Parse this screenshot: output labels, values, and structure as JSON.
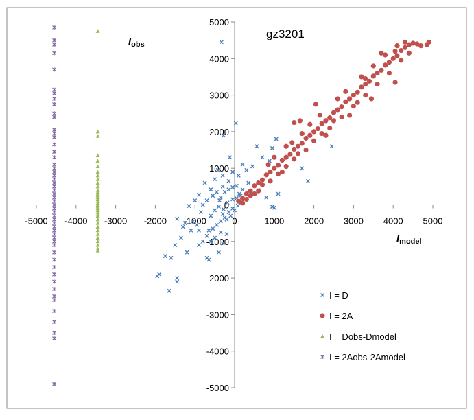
{
  "chart_data": {
    "type": "scatter",
    "title": "gz3201",
    "xlabel": "I",
    "xlabel_sub": "model",
    "ylabel": "I",
    "ylabel_sub": "obs",
    "xlim": [
      -5000,
      5000
    ],
    "ylim": [
      -5000,
      5000
    ],
    "x_ticks": [
      -5000,
      -4000,
      -3000,
      -2000,
      -1000,
      0,
      1000,
      2000,
      3000,
      4000,
      5000
    ],
    "y_ticks": [
      -5000,
      -4000,
      -3000,
      -2000,
      -1000,
      0,
      1000,
      2000,
      3000,
      4000,
      5000
    ],
    "grid": false,
    "legend_position": "bottom-right",
    "series": [
      {
        "name": "I = D",
        "marker": "x",
        "color": "#4a7ebb",
        "points": [
          [
            -330,
            4450
          ],
          [
            -280,
            1900
          ],
          [
            30,
            2230
          ],
          [
            -120,
            1300
          ],
          [
            200,
            1100
          ],
          [
            560,
            1600
          ],
          [
            2450,
            1600
          ],
          [
            -420,
            950
          ],
          [
            -300,
            800
          ],
          [
            -500,
            700
          ],
          [
            -750,
            600
          ],
          [
            -600,
            420
          ],
          [
            -900,
            280
          ],
          [
            -1000,
            120
          ],
          [
            -1150,
            -30
          ],
          [
            -1450,
            -380
          ],
          [
            -1300,
            -600
          ],
          [
            -1100,
            -700
          ],
          [
            -1350,
            -900
          ],
          [
            -1500,
            -1100
          ],
          [
            -1750,
            -1400
          ],
          [
            -1600,
            -1450
          ],
          [
            -1200,
            -1300
          ],
          [
            -900,
            -1100
          ],
          [
            -650,
            -1500
          ],
          [
            -700,
            -1450
          ],
          [
            -400,
            -1300
          ],
          [
            -300,
            -1050
          ],
          [
            -200,
            -800
          ],
          [
            -900,
            -700
          ],
          [
            -700,
            -850
          ],
          [
            -500,
            -900
          ],
          [
            -1900,
            -1900
          ],
          [
            -1950,
            -1950
          ],
          [
            -1450,
            -2000
          ],
          [
            -1450,
            -2100
          ],
          [
            -1650,
            -2350
          ],
          [
            -300,
            500
          ],
          [
            -150,
            650
          ],
          [
            -50,
            900
          ],
          [
            100,
            800
          ],
          [
            300,
            950
          ],
          [
            450,
            1050
          ],
          [
            700,
            1300
          ],
          [
            950,
            1550
          ],
          [
            1050,
            1800
          ],
          [
            880,
            1200
          ],
          [
            1850,
            650
          ],
          [
            1700,
            1000
          ],
          [
            1100,
            300
          ],
          [
            950,
            -50
          ],
          [
            1000,
            -80
          ],
          [
            800,
            200
          ],
          [
            600,
            400
          ],
          [
            400,
            300
          ],
          [
            250,
            150
          ],
          [
            150,
            50
          ],
          [
            80,
            -20
          ],
          [
            -50,
            -100
          ],
          [
            -150,
            -200
          ],
          [
            -250,
            -350
          ],
          [
            -350,
            -450
          ],
          [
            -450,
            -550
          ],
          [
            -550,
            -650
          ],
          [
            -650,
            -700
          ],
          [
            -850,
            -200
          ],
          [
            -800,
            0
          ],
          [
            -700,
            120
          ],
          [
            -550,
            250
          ],
          [
            -450,
            350
          ],
          [
            -350,
            200
          ],
          [
            -250,
            350
          ],
          [
            -150,
            420
          ],
          [
            -50,
            480
          ],
          [
            50,
            520
          ],
          [
            120,
            300
          ],
          [
            200,
            420
          ],
          [
            350,
            600
          ],
          [
            -600,
            -300
          ],
          [
            -500,
            -150
          ],
          [
            -400,
            -50
          ],
          [
            -300,
            -250
          ],
          [
            -200,
            -400
          ],
          [
            -100,
            -300
          ],
          [
            0,
            -150
          ],
          [
            -50,
            150
          ],
          [
            50,
            180
          ],
          [
            150,
            250
          ],
          [
            -380,
            120
          ],
          [
            -280,
            -120
          ],
          [
            -180,
            60
          ],
          [
            -1050,
            -450
          ],
          [
            -950,
            -550
          ],
          [
            -1250,
            -500
          ],
          [
            -800,
            -1000
          ],
          [
            -600,
            -1000
          ],
          [
            -350,
            -750
          ]
        ]
      },
      {
        "name": "I = 2A",
        "marker": "circle",
        "color": "#c0504d",
        "points": [
          [
            100,
            100
          ],
          [
            200,
            180
          ],
          [
            300,
            300
          ],
          [
            400,
            380
          ],
          [
            500,
            520
          ],
          [
            600,
            600
          ],
          [
            700,
            680
          ],
          [
            800,
            820
          ],
          [
            900,
            900
          ],
          [
            1000,
            1000
          ],
          [
            1100,
            1080
          ],
          [
            1200,
            1220
          ],
          [
            1300,
            1300
          ],
          [
            1400,
            1380
          ],
          [
            1500,
            1520
          ],
          [
            1600,
            1600
          ],
          [
            1700,
            1680
          ],
          [
            1800,
            1820
          ],
          [
            1900,
            1900
          ],
          [
            2000,
            2000
          ],
          [
            2100,
            2080
          ],
          [
            2200,
            2220
          ],
          [
            2300,
            2300
          ],
          [
            2400,
            2380
          ],
          [
            2500,
            2520
          ],
          [
            2600,
            2600
          ],
          [
            2700,
            2680
          ],
          [
            2800,
            2820
          ],
          [
            2900,
            2900
          ],
          [
            3000,
            3000
          ],
          [
            3100,
            3080
          ],
          [
            3200,
            3220
          ],
          [
            3300,
            3300
          ],
          [
            3400,
            3380
          ],
          [
            3500,
            3520
          ],
          [
            3600,
            3600
          ],
          [
            3700,
            3680
          ],
          [
            3800,
            3820
          ],
          [
            3900,
            3900
          ],
          [
            4000,
            4000
          ],
          [
            4100,
            4080
          ],
          [
            4200,
            4220
          ],
          [
            4300,
            4300
          ],
          [
            4400,
            4380
          ],
          [
            4500,
            4420
          ],
          [
            4600,
            4400
          ],
          [
            4700,
            4350
          ],
          [
            4900,
            4450
          ],
          [
            4850,
            4380
          ],
          [
            1500,
            2250
          ],
          [
            1650,
            2300
          ],
          [
            2050,
            2750
          ],
          [
            3300,
            3450
          ],
          [
            3700,
            4150
          ],
          [
            4050,
            4200
          ],
          [
            1800,
            1500
          ],
          [
            2300,
            1900
          ],
          [
            2900,
            2450
          ],
          [
            3450,
            2900
          ],
          [
            4050,
            3350
          ],
          [
            900,
            650
          ],
          [
            600,
            380
          ],
          [
            1200,
            900
          ],
          [
            1000,
            1300
          ],
          [
            1700,
            1950
          ],
          [
            2500,
            2300
          ],
          [
            3100,
            2800
          ],
          [
            500,
            300
          ],
          [
            300,
            150
          ],
          [
            200,
            50
          ],
          [
            400,
            250
          ],
          [
            700,
            550
          ],
          [
            1100,
            850
          ],
          [
            1300,
            1050
          ],
          [
            1500,
            1250
          ],
          [
            1600,
            1400
          ],
          [
            2000,
            1750
          ],
          [
            2200,
            1950
          ],
          [
            2400,
            2100
          ],
          [
            2700,
            2400
          ],
          [
            3000,
            2700
          ],
          [
            3300,
            3000
          ],
          [
            3600,
            3300
          ],
          [
            3900,
            3600
          ],
          [
            4200,
            3950
          ],
          [
            4400,
            4150
          ],
          [
            1300,
            1600
          ],
          [
            1900,
            2200
          ],
          [
            2600,
            2900
          ],
          [
            3200,
            3500
          ],
          [
            3800,
            4100
          ],
          [
            4300,
            4450
          ],
          [
            850,
            1100
          ],
          [
            1450,
            1700
          ],
          [
            2150,
            2450
          ],
          [
            2800,
            3100
          ],
          [
            3500,
            3800
          ],
          [
            4100,
            4350
          ]
        ]
      },
      {
        "name": "I = Dobs-Dmodel",
        "marker": "triangle",
        "color": "#9bbb59",
        "points": [
          [
            -3450,
            4750
          ],
          [
            -3450,
            2000
          ],
          [
            -3450,
            1880
          ],
          [
            -3450,
            1350
          ],
          [
            -3450,
            1200
          ],
          [
            -3450,
            1050
          ],
          [
            -3450,
            900
          ],
          [
            -3450,
            800
          ],
          [
            -3450,
            700
          ],
          [
            -3450,
            600
          ],
          [
            -3450,
            500
          ],
          [
            -3450,
            400
          ],
          [
            -3450,
            300
          ],
          [
            -3450,
            200
          ],
          [
            -3450,
            100
          ],
          [
            -3450,
            0
          ],
          [
            -3450,
            -100
          ],
          [
            -3450,
            -200
          ],
          [
            -3450,
            -300
          ],
          [
            -3450,
            -400
          ],
          [
            -3450,
            -500
          ],
          [
            -3450,
            -600
          ],
          [
            -3450,
            -700
          ],
          [
            -3450,
            -800
          ],
          [
            -3450,
            -900
          ],
          [
            -3450,
            -1000
          ],
          [
            -3450,
            -1100
          ],
          [
            -3450,
            -1200
          ],
          [
            -3450,
            -1250
          ],
          [
            -3450,
            -50
          ],
          [
            -3450,
            50
          ],
          [
            -3450,
            150
          ],
          [
            -3450,
            250
          ],
          [
            -3450,
            350
          ],
          [
            -3450,
            -150
          ],
          [
            -3450,
            -250
          ]
        ]
      },
      {
        "name": "I = 2Aobs-2Amodel",
        "marker": "star",
        "color": "#8064a2",
        "points": [
          [
            -4550,
            4850
          ],
          [
            -4550,
            4500
          ],
          [
            -4550,
            4380
          ],
          [
            -4550,
            4150
          ],
          [
            -4550,
            3700
          ],
          [
            -4550,
            3150
          ],
          [
            -4550,
            3050
          ],
          [
            -4550,
            2900
          ],
          [
            -4550,
            2750
          ],
          [
            -4550,
            2500
          ],
          [
            -4550,
            2400
          ],
          [
            -4550,
            2050
          ],
          [
            -4550,
            1950
          ],
          [
            -4550,
            1850
          ],
          [
            -4550,
            1650
          ],
          [
            -4550,
            1450
          ],
          [
            -4550,
            1300
          ],
          [
            -4550,
            1100
          ],
          [
            -4550,
            1000
          ],
          [
            -4550,
            900
          ],
          [
            -4550,
            800
          ],
          [
            -4550,
            700
          ],
          [
            -4550,
            600
          ],
          [
            -4550,
            500
          ],
          [
            -4550,
            400
          ],
          [
            -4550,
            300
          ],
          [
            -4550,
            200
          ],
          [
            -4550,
            100
          ],
          [
            -4550,
            0
          ],
          [
            -4550,
            -100
          ],
          [
            -4550,
            -200
          ],
          [
            -4550,
            -300
          ],
          [
            -4550,
            -400
          ],
          [
            -4550,
            -500
          ],
          [
            -4550,
            -600
          ],
          [
            -4550,
            -700
          ],
          [
            -4550,
            -800
          ],
          [
            -4550,
            -900
          ],
          [
            -4550,
            -1000
          ],
          [
            -4550,
            -1100
          ],
          [
            -4550,
            -1300
          ],
          [
            -4550,
            -1500
          ],
          [
            -4550,
            -1700
          ],
          [
            -4550,
            -1900
          ],
          [
            -4550,
            -2100
          ],
          [
            -4550,
            -2300
          ],
          [
            -4550,
            -2500
          ],
          [
            -4550,
            -2600
          ],
          [
            -4550,
            -2900
          ],
          [
            -4550,
            -3200
          ],
          [
            -4550,
            -3500
          ],
          [
            -4550,
            -3650
          ],
          [
            -4550,
            -4900
          ]
        ]
      }
    ]
  }
}
